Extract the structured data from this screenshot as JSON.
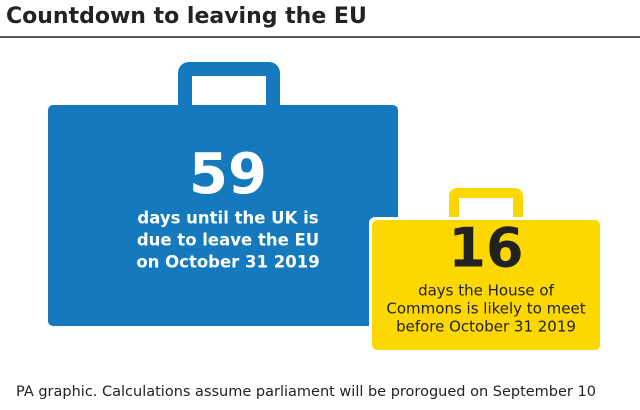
{
  "title": "Countdown to leaving the EU",
  "items": [
    {
      "number": 59,
      "lines": [
        "days until the UK is",
        "due to leave the EU",
        "on October 31 2019"
      ]
    },
    {
      "number": 16,
      "lines": [
        "days the House of",
        "Commons is likely to meet",
        "before October 31 2019"
      ]
    }
  ],
  "footer": "PA graphic. Calculations assume parliament will be prorogued on September 10"
}
